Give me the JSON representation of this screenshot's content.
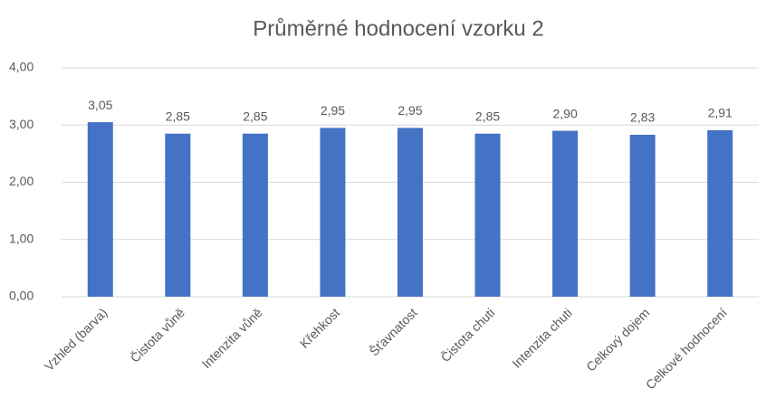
{
  "chart_data": {
    "type": "bar",
    "title": "Průměrné hodnocení vzorku 2",
    "categories": [
      "Vzhled (barva)",
      "Čistota vůně",
      "Intenzita vůně",
      "Křehkost",
      "Šťavnatost",
      "Čistota chuti",
      "Intenzita chuti",
      "Celkový dojem",
      "Celkové hodnocení"
    ],
    "values": [
      3.05,
      2.85,
      2.85,
      2.95,
      2.95,
      2.85,
      2.9,
      2.83,
      2.91
    ],
    "value_labels": [
      "3,05",
      "2,85",
      "2,85",
      "2,95",
      "2,95",
      "2,85",
      "2,90",
      "2,83",
      "2,91"
    ],
    "color": "#4472c4",
    "ylim": [
      0,
      4
    ],
    "yticks": [
      {
        "value": 0,
        "label": "0,00"
      },
      {
        "value": 1,
        "label": "1,00"
      },
      {
        "value": 2,
        "label": "2,00"
      },
      {
        "value": 3,
        "label": "3,00"
      },
      {
        "value": 4,
        "label": "4,00"
      }
    ],
    "grid": true
  }
}
